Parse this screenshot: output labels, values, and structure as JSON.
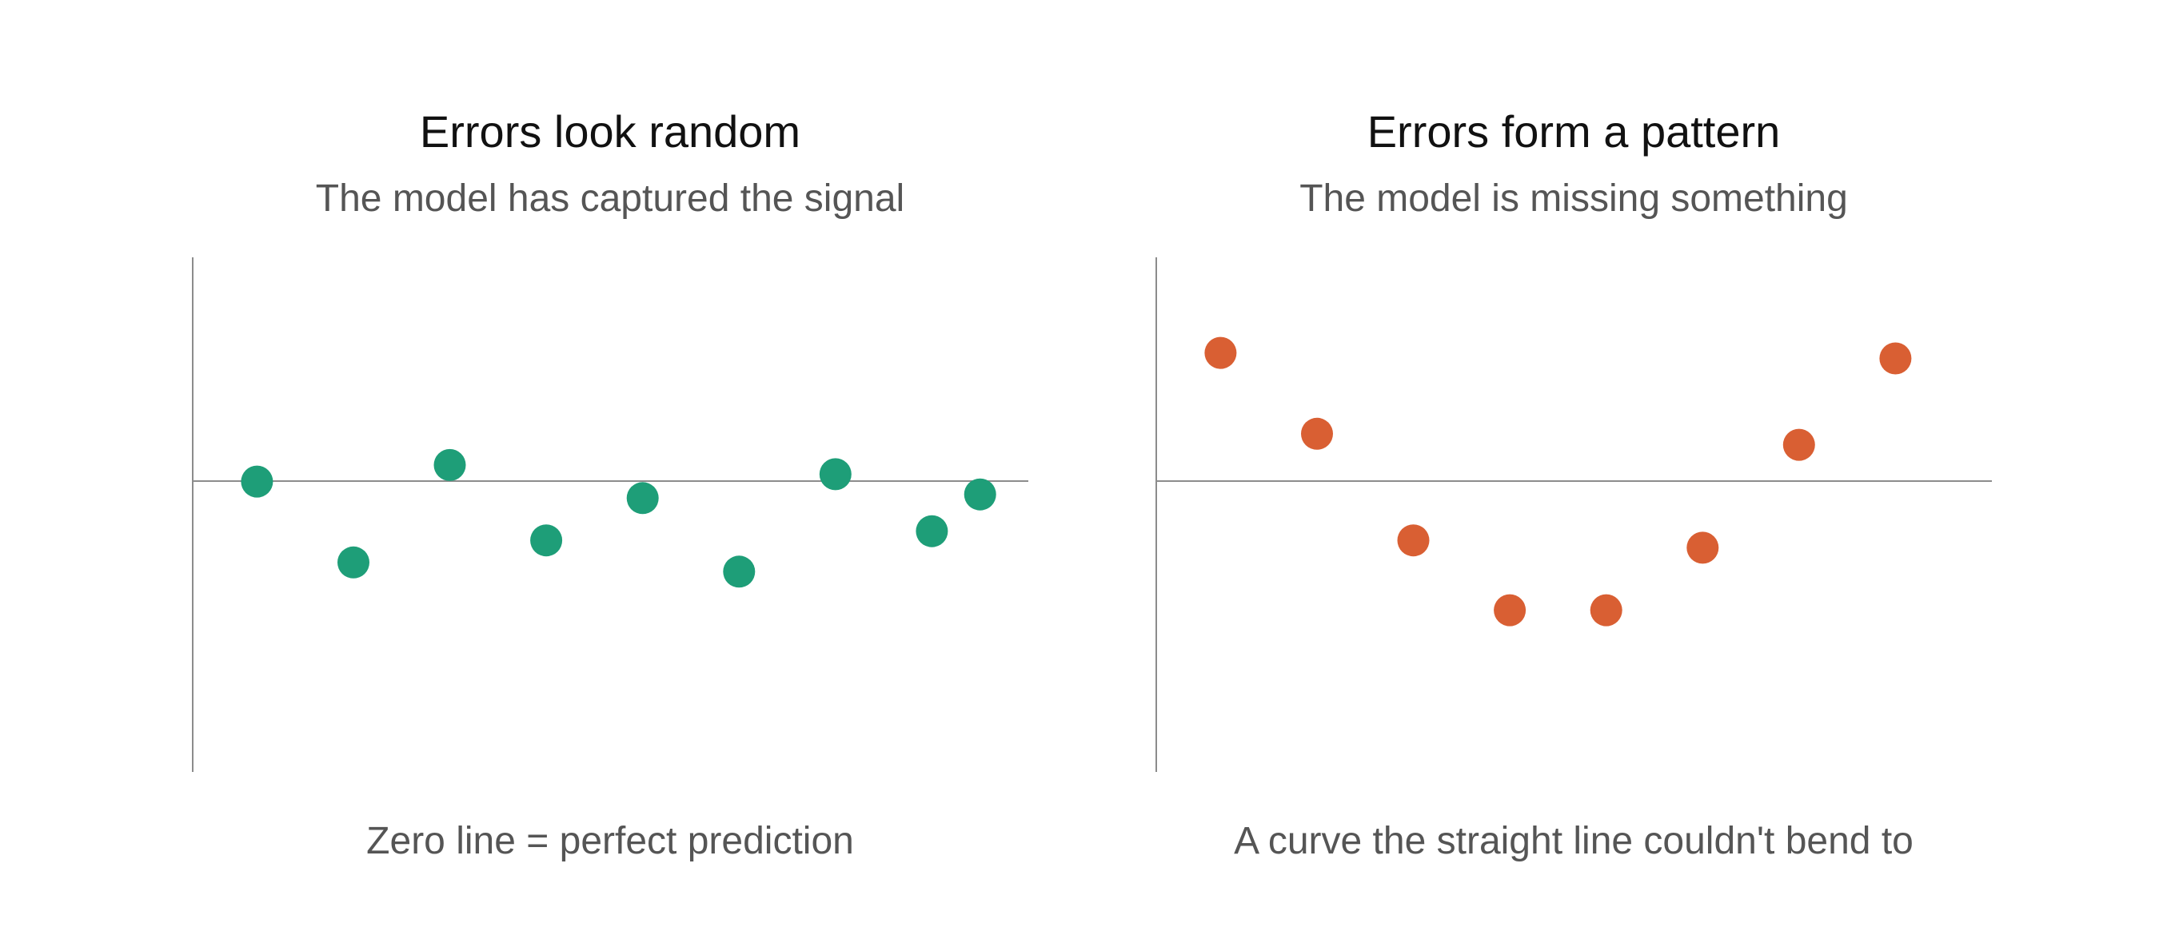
{
  "colors": {
    "random_points": "#1e9e78",
    "pattern_points": "#d95f33",
    "axis": "#8c8c8c",
    "title": "#111111",
    "subtitle": "#555555"
  },
  "chart_data": [
    {
      "type": "scatter",
      "title": "Errors look random",
      "subtitle": "The model has captured the signal",
      "caption": "Zero line = perfect prediction",
      "xlabel": "",
      "ylabel": "",
      "xlim": [
        0,
        13
      ],
      "ylim": [
        -7,
        7
      ],
      "grid": false,
      "color": "#1e9e78",
      "x": [
        1,
        2.5,
        4,
        5.5,
        7,
        8.5,
        10,
        11.5,
        12.25
      ],
      "y": [
        0.9,
        -1.3,
        1.35,
        -0.7,
        0.45,
        -1.55,
        1.1,
        -0.45,
        0.55
      ]
    },
    {
      "type": "scatter",
      "title": "Errors form a pattern",
      "subtitle": "The model is missing something",
      "caption": "A curve the straight line couldn't bend to",
      "xlabel": "",
      "ylabel": "",
      "xlim": [
        0,
        13
      ],
      "ylim": [
        -7,
        7
      ],
      "grid": false,
      "color": "#d95f33",
      "x": [
        1,
        2.5,
        4,
        5.5,
        7,
        8.5,
        10,
        11.5
      ],
      "y": [
        4.4,
        2.2,
        -0.7,
        -2.6,
        -2.6,
        -0.9,
        1.9,
        4.25
      ]
    }
  ]
}
